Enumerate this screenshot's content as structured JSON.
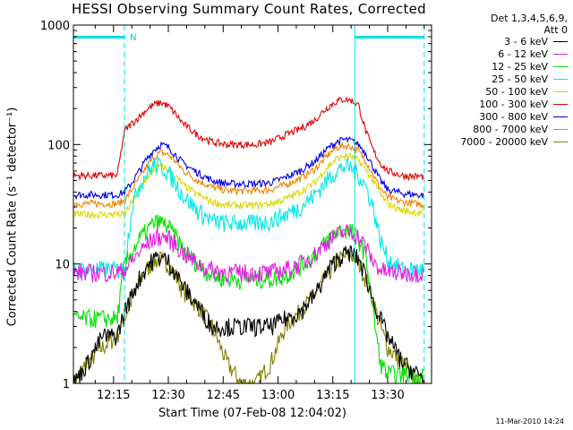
{
  "chart_data": {
    "type": "line",
    "title": "HESSI Observing Summary Count Rates, Corrected",
    "xlabel": "Start Time (07-Feb-08 12:04:02)",
    "ylabel": "Corrected Count Rate (s⁻¹ detector⁻¹)",
    "y_scale": "log",
    "ylim": [
      1,
      1000
    ],
    "xlim": [
      "12:04:02",
      "13:42"
    ],
    "x_ticks": [
      "12:15",
      "12:30",
      "12:45",
      "13:00",
      "13:15",
      "13:30"
    ],
    "y_ticks": [
      "1",
      "10",
      "100",
      "1000"
    ],
    "legend_header": [
      "Det 1,3,4,5,6,9,",
      "Att 0"
    ],
    "legend_placement": "right",
    "flag_label": "N",
    "footer": "11-Mar-2010 14:24",
    "x_minutes": [
      4,
      8,
      12,
      16,
      18,
      20,
      22,
      24,
      26,
      28,
      30,
      32,
      34,
      38,
      42,
      46,
      50,
      54,
      58,
      62,
      66,
      70,
      72,
      74,
      76,
      78,
      80,
      82,
      84,
      86,
      88,
      90,
      94,
      98,
      102
    ],
    "series": [
      {
        "name": "3 - 6 keV",
        "color": "#000000",
        "values": [
          1,
          1.5,
          2.5,
          2.5,
          4,
          5.5,
          7.5,
          9.5,
          11,
          11.5,
          10.5,
          8.5,
          6.5,
          4.5,
          3,
          3,
          3,
          3,
          3,
          3.5,
          4,
          5.5,
          7,
          9,
          11,
          12,
          12.5,
          11,
          8,
          5,
          3.5,
          2.5,
          1.5,
          1.2,
          1
        ]
      },
      {
        "name": "6 - 12 keV",
        "color": "#e020e0",
        "values": [
          8.5,
          8.5,
          8.5,
          8.5,
          9,
          10.5,
          12.5,
          14.5,
          16.5,
          17,
          16.5,
          14.5,
          12.5,
          10,
          9,
          8.5,
          8.5,
          8.5,
          8.5,
          9,
          10,
          12,
          14,
          16,
          17.5,
          18.5,
          18.5,
          17,
          14,
          10.5,
          9,
          8.5,
          8.5,
          8.5,
          8.5
        ]
      },
      {
        "name": "12 - 25 keV",
        "color": "#00e000",
        "values": [
          3.5,
          3.5,
          3.5,
          3.5,
          10,
          12.5,
          16,
          19,
          22,
          22.5,
          20.5,
          17,
          13.5,
          10,
          8,
          7.5,
          7.5,
          7.5,
          7.5,
          8,
          9.5,
          12,
          14,
          16.5,
          18.5,
          19.5,
          19,
          16,
          12,
          4,
          1.5,
          1.2,
          1.2,
          1.2,
          1.2
        ]
      },
      {
        "name": "25 - 50 keV",
        "color": "#00e8e8",
        "values": [
          9,
          9,
          9,
          9,
          9,
          30,
          45,
          58,
          67,
          66,
          58,
          47,
          38,
          28,
          23,
          22,
          22,
          22,
          23,
          26,
          30,
          38,
          45,
          53,
          60,
          65,
          64,
          56,
          45,
          30,
          16,
          11,
          9,
          9,
          9
        ]
      },
      {
        "name": "50 - 100 keV",
        "color": "#d8d800",
        "values": [
          26,
          26,
          26,
          26,
          26,
          33,
          42,
          52,
          62,
          66,
          62,
          54,
          46,
          38,
          33,
          31,
          31,
          31,
          32,
          35,
          40,
          48,
          57,
          67,
          76,
          80,
          79,
          74,
          62,
          50,
          38,
          32,
          28,
          27,
          27
        ]
      },
      {
        "name": "100 - 300 keV",
        "color": "#e00000",
        "values": [
          55,
          55,
          55,
          55,
          130,
          150,
          170,
          195,
          215,
          225,
          210,
          180,
          150,
          120,
          105,
          100,
          100,
          100,
          105,
          120,
          135,
          160,
          185,
          210,
          230,
          240,
          235,
          215,
          130,
          90,
          70,
          60,
          55,
          54,
          54
        ]
      },
      {
        "name": "300 - 800 keV",
        "color": "#0000e0",
        "values": [
          38,
          38,
          38,
          38,
          40,
          48,
          60,
          75,
          90,
          100,
          95,
          82,
          70,
          58,
          50,
          47,
          47,
          47,
          48,
          53,
          60,
          72,
          83,
          95,
          105,
          110,
          108,
          100,
          85,
          65,
          50,
          42,
          39,
          38,
          37
        ]
      },
      {
        "name": "800 - 7000 keV",
        "color": "#f08000",
        "values": [
          32,
          32,
          32,
          32,
          34,
          42,
          52,
          65,
          78,
          86,
          82,
          72,
          61,
          50,
          44,
          41,
          41,
          41,
          42,
          46,
          52,
          62,
          72,
          84,
          94,
          98,
          96,
          88,
          74,
          56,
          43,
          36,
          33,
          32,
          31
        ]
      },
      {
        "name": "7000 - 20000 keV",
        "color": "#808000",
        "values": [
          1,
          1.5,
          2,
          2.5,
          3.5,
          5,
          7,
          9,
          10.5,
          11,
          10,
          8,
          6,
          4.5,
          3,
          1.5,
          1,
          1,
          1.5,
          3,
          4,
          5.5,
          7,
          8.5,
          10.5,
          11.5,
          12,
          10.5,
          7.5,
          5,
          3,
          2,
          1.5,
          1,
          1
        ]
      }
    ],
    "flags": [
      {
        "from_minutes": 4,
        "to_minutes": 18,
        "color": "#00e0e0"
      },
      {
        "from_minutes": 81,
        "to_minutes": 100,
        "color": "#00e0e0"
      }
    ],
    "markers": [
      {
        "minutes": 18,
        "style": "dashed",
        "color": "#00e0e0"
      },
      {
        "minutes": 81,
        "style": "solid",
        "color": "#00e0e0"
      },
      {
        "minutes": 100,
        "style": "dashed",
        "color": "#00e0e0"
      }
    ]
  }
}
